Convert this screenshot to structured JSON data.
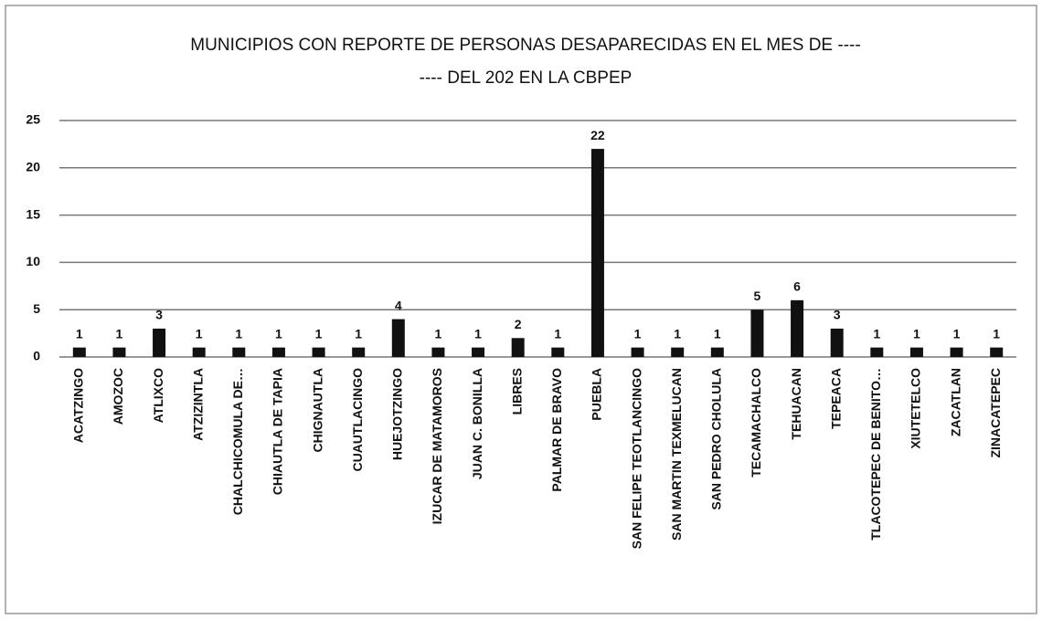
{
  "chart_data": {
    "type": "bar",
    "title": [
      "MUNICIPIOS CON REPORTE DE PERSONAS DESAPARECIDAS EN EL MES DE ----",
      "---- DEL 202 EN LA CBPEP"
    ],
    "categories": [
      "ACATZINGO",
      "AMOZOC",
      "ATLIXCO",
      "ATZIZINTLA",
      "CHALCHICOMULA DE…",
      "CHIAUTLA DE TAPIA",
      "CHIGNAUTLA",
      "CUAUTLACINGO",
      "HUEJOTZINGO",
      "IZUCAR DE MATAMOROS",
      "JUAN C. BONILLA",
      "LIBRES",
      "PALMAR DE BRAVO",
      "PUEBLA",
      "SAN FELIPE TEOTLANCINGO",
      "SAN MARTIN TEXMELUCAN",
      "SAN PEDRO CHOLULA",
      "TECAMACHALCO",
      "TEHUACAN",
      "TEPEACA",
      "TLACOTEPEC DE BENITO…",
      "XIUTETELCO",
      "ZACATLAN",
      "ZINACATEPEC"
    ],
    "values": [
      1,
      1,
      3,
      1,
      1,
      1,
      1,
      1,
      4,
      1,
      1,
      2,
      1,
      22,
      1,
      1,
      1,
      5,
      6,
      3,
      1,
      1,
      1,
      1
    ],
    "color": "#111111",
    "ylim": [
      0,
      25
    ],
    "yticks": [
      0,
      5,
      10,
      15,
      20,
      25
    ],
    "grid": true
  }
}
